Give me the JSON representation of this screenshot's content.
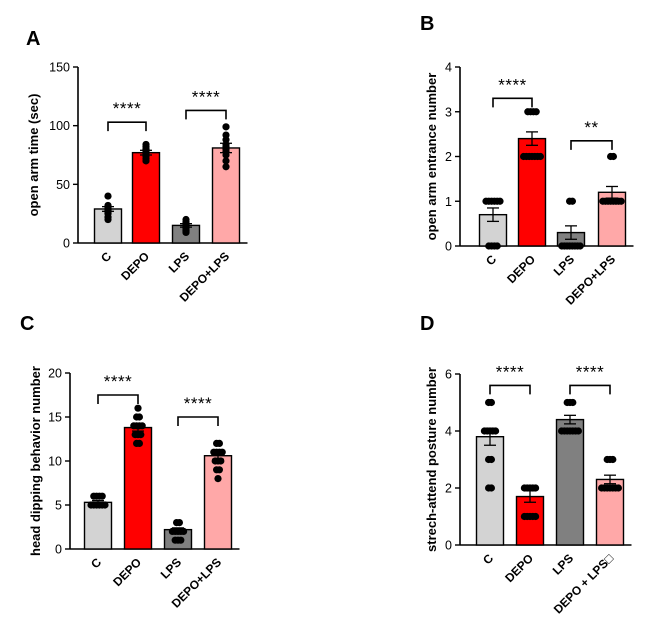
{
  "chart_data": [
    {
      "id": "A",
      "panel_label": "A",
      "type": "bar",
      "ylabel": "open arm time (sec)",
      "ylim": [
        0,
        150
      ],
      "yticks": [
        "0",
        "50",
        "100",
        "150"
      ],
      "categories": [
        "C",
        "DEPO",
        "LPS",
        "DEPO+LPS"
      ],
      "colors": [
        "#d3d3d3",
        "#ff0000",
        "#808080",
        "#ffa8a8"
      ],
      "means": [
        29,
        77,
        15,
        81
      ],
      "sem": [
        2,
        2,
        1.5,
        4
      ],
      "points": [
        [
          40,
          32,
          31,
          30,
          29,
          28,
          27,
          26,
          25,
          22,
          20
        ],
        [
          84,
          82,
          80,
          79,
          78,
          77,
          76,
          75,
          74,
          72,
          70
        ],
        [
          20,
          18,
          17,
          16,
          15,
          14,
          13,
          12,
          11,
          10,
          9
        ],
        [
          99,
          92,
          88,
          84,
          82,
          80,
          78,
          75,
          70,
          65
        ]
      ],
      "significance": [
        {
          "from": 0,
          "to": 1,
          "label": "****",
          "level": 103
        },
        {
          "from": 2,
          "to": 3,
          "label": "****",
          "level": 113
        }
      ]
    },
    {
      "id": "B",
      "panel_label": "B",
      "type": "bar",
      "ylabel": "open arm entrance number",
      "ylim": [
        0,
        4
      ],
      "yticks": [
        "0",
        "1",
        "2",
        "3",
        "4"
      ],
      "categories": [
        "C",
        "DEPO",
        "LPS",
        "DEPO+LPS"
      ],
      "colors": [
        "#d3d3d3",
        "#ff0000",
        "#808080",
        "#ffa8a8"
      ],
      "means": [
        0.7,
        2.4,
        0.3,
        1.2
      ],
      "sem": [
        0.15,
        0.15,
        0.15,
        0.13
      ],
      "points": [
        [
          1,
          1,
          1,
          1,
          1,
          1,
          0,
          0,
          0,
          0
        ],
        [
          3,
          3,
          3,
          3,
          2,
          2,
          2,
          2,
          2,
          2,
          2
        ],
        [
          1,
          1,
          0,
          0,
          0,
          0,
          0,
          0,
          0,
          0
        ],
        [
          2,
          2,
          1,
          1,
          1,
          1,
          1,
          1,
          1,
          1
        ]
      ],
      "significance": [
        {
          "from": 0,
          "to": 1,
          "label": "****",
          "level": 3.3
        },
        {
          "from": 2,
          "to": 3,
          "label": "**",
          "level": 2.35
        }
      ]
    },
    {
      "id": "C",
      "panel_label": "C",
      "type": "bar",
      "ylabel": "head dipping behavior number",
      "ylim": [
        0,
        20
      ],
      "yticks": [
        "0",
        "5",
        "10",
        "15",
        "20"
      ],
      "categories": [
        "C",
        "DEPO",
        "LPS",
        "DEPO+LPS"
      ],
      "colors": [
        "#d3d3d3",
        "#ff0000",
        "#808080",
        "#ffa8a8"
      ],
      "means": [
        5.3,
        13.8,
        2.2,
        10.6
      ],
      "sem": [
        0.2,
        0.4,
        0.2,
        0.4
      ],
      "points": [
        [
          6,
          6,
          6,
          6,
          5,
          5,
          5,
          5,
          5,
          5
        ],
        [
          16,
          15,
          15,
          14,
          14,
          14,
          14,
          13,
          13,
          13,
          12,
          12
        ],
        [
          3,
          3,
          2,
          2,
          2,
          2,
          2,
          1,
          1,
          1
        ],
        [
          12,
          12,
          11,
          11,
          11,
          11,
          10,
          10,
          10,
          9,
          9,
          8
        ]
      ],
      "significance": [
        {
          "from": 0,
          "to": 1,
          "label": "****",
          "level": 17.5
        },
        {
          "from": 2,
          "to": 3,
          "label": "****",
          "level": 15
        }
      ]
    },
    {
      "id": "D",
      "panel_label": "D",
      "type": "bar",
      "ylabel": "strech-attend posture number",
      "ylim": [
        0,
        6
      ],
      "yticks": [
        "0",
        "2",
        "4",
        "6"
      ],
      "categories": [
        "C",
        "DEPO",
        "LPS",
        "DEPO + LPS□"
      ],
      "colors": [
        "#d3d3d3",
        "#ff0000",
        "#808080",
        "#ffa8a8"
      ],
      "means": [
        3.8,
        1.7,
        4.4,
        2.3
      ],
      "sem": [
        0.3,
        0.2,
        0.15,
        0.15
      ],
      "points": [
        [
          5,
          5,
          4,
          4,
          4,
          4,
          4,
          3,
          3,
          2,
          2
        ],
        [
          2,
          2,
          2,
          2,
          2,
          1,
          1,
          1,
          1,
          1
        ],
        [
          5,
          5,
          5,
          4,
          4,
          4,
          4,
          4,
          4,
          4
        ],
        [
          3,
          3,
          3,
          2,
          2,
          2,
          2,
          2,
          2,
          2
        ]
      ],
      "significance": [
        {
          "from": 0,
          "to": 1,
          "label": "****",
          "level": 5.6
        },
        {
          "from": 2,
          "to": 3,
          "label": "****",
          "level": 5.6
        }
      ]
    }
  ]
}
